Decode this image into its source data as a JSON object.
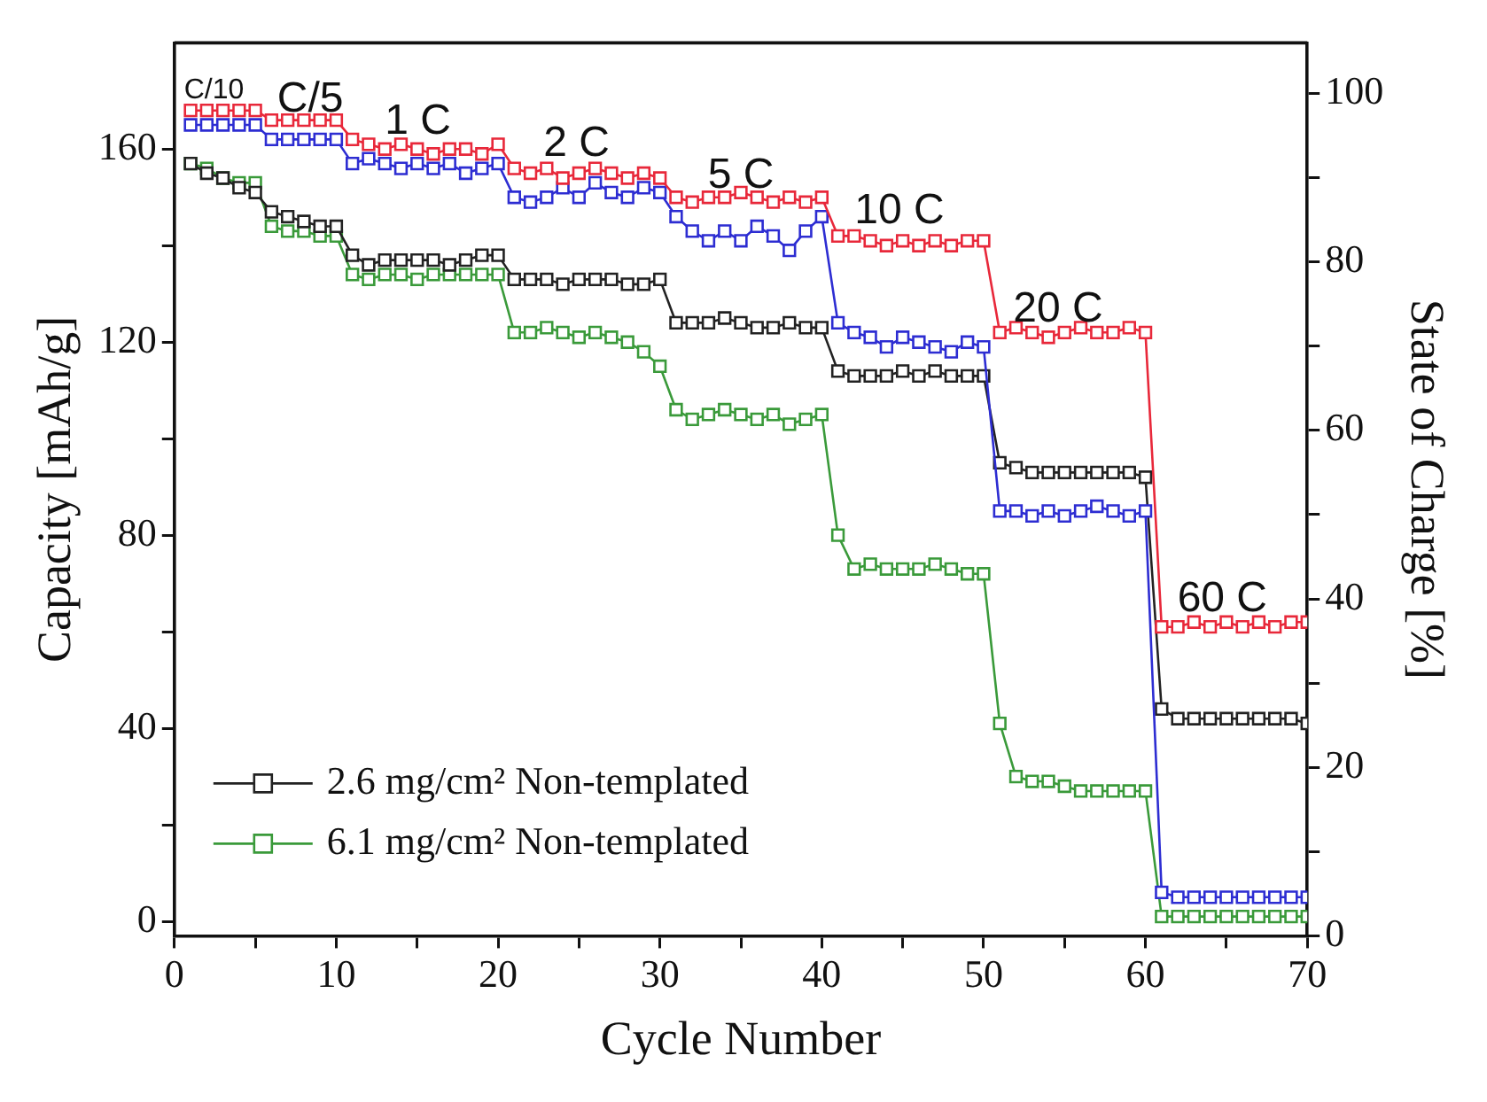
{
  "chart_data": {
    "type": "line",
    "xlabel": "Cycle Number",
    "ylabel": "Capacity [mAh/g]",
    "y2label": "State of Charge [%]",
    "xlim": [
      0,
      70
    ],
    "xticks": [
      0,
      {
        "value": 5,
        "label": null
      },
      10,
      {
        "value": 15,
        "label": null
      },
      20,
      {
        "value": 25,
        "label": null
      },
      30,
      {
        "value": 35,
        "label": null
      },
      40,
      {
        "value": 45,
        "label": null
      },
      50,
      {
        "value": 55,
        "label": null
      },
      60,
      {
        "value": 65,
        "label": null
      },
      70
    ],
    "ylim": [
      -3,
      182
    ],
    "yticks": [
      0,
      {
        "value": 20,
        "label": null
      },
      40,
      {
        "value": 60,
        "label": null
      },
      80,
      {
        "value": 100,
        "label": null
      },
      120,
      {
        "value": 140,
        "label": null
      },
      160
    ],
    "y2lim": [
      0,
      106
    ],
    "y2ticks": [
      0,
      {
        "value": 10,
        "label": null
      },
      20,
      {
        "value": 30,
        "label": null
      },
      40,
      {
        "value": 50,
        "label": null
      },
      60,
      {
        "value": 70,
        "label": null
      },
      80,
      {
        "value": 90,
        "label": null
      },
      100
    ],
    "x": [
      1,
      2,
      3,
      4,
      5,
      6,
      7,
      8,
      9,
      10,
      11,
      12,
      13,
      14,
      15,
      16,
      17,
      18,
      19,
      20,
      21,
      22,
      23,
      24,
      25,
      26,
      27,
      28,
      29,
      30,
      31,
      32,
      33,
      34,
      35,
      36,
      37,
      38,
      39,
      40,
      41,
      42,
      43,
      44,
      45,
      46,
      47,
      48,
      49,
      50,
      51,
      52,
      53,
      54,
      55,
      56,
      57,
      58,
      59,
      60,
      61,
      62,
      63,
      64,
      65,
      66,
      67,
      68,
      69,
      70
    ],
    "marker": "square",
    "line_style": "solid",
    "grid": false,
    "legend": "bottom left",
    "series": [
      {
        "color": "#e8283a",
        "values": [
          168,
          168,
          168,
          168,
          168,
          166,
          166,
          166,
          166,
          166,
          162,
          161,
          160,
          161,
          160,
          159,
          160,
          160,
          159,
          161,
          156,
          155,
          156,
          154,
          155,
          156,
          155,
          154,
          155,
          154,
          150,
          149,
          150,
          150,
          151,
          150,
          149,
          150,
          149,
          150,
          142,
          142,
          141,
          140,
          141,
          140,
          141,
          140,
          141,
          141,
          122,
          123,
          122,
          121,
          122,
          123,
          122,
          122,
          123,
          122,
          61,
          61,
          62,
          61,
          62,
          61,
          62,
          61,
          62,
          62
        ]
      },
      {
        "color": "#2d2dd2",
        "values": [
          165,
          165,
          165,
          165,
          165,
          162,
          162,
          162,
          162,
          162,
          157,
          158,
          157,
          156,
          157,
          156,
          157,
          155,
          156,
          157,
          150,
          149,
          150,
          152,
          150,
          153,
          151,
          150,
          152,
          151,
          146,
          143,
          141,
          143,
          141,
          144,
          142,
          139,
          143,
          146,
          124,
          122,
          121,
          119,
          121,
          120,
          119,
          118,
          120,
          119,
          85,
          85,
          84,
          85,
          84,
          85,
          86,
          85,
          84,
          85,
          6,
          5,
          5,
          5,
          5,
          5,
          5,
          5,
          5,
          5
        ]
      },
      {
        "name": "2.6 mg/cm² Non-templated",
        "color": "#222222",
        "values": [
          157,
          155,
          154,
          152,
          151,
          147,
          146,
          145,
          144,
          144,
          138,
          136,
          137,
          137,
          137,
          137,
          136,
          137,
          138,
          138,
          133,
          133,
          133,
          132,
          133,
          133,
          133,
          132,
          132,
          133,
          124,
          124,
          124,
          125,
          124,
          123,
          123,
          124,
          123,
          123,
          114,
          113,
          113,
          113,
          114,
          113,
          114,
          113,
          113,
          113,
          95,
          94,
          93,
          93,
          93,
          93,
          93,
          93,
          93,
          92,
          44,
          42,
          42,
          42,
          42,
          42,
          42,
          42,
          42,
          41
        ]
      },
      {
        "name": "6.1 mg/cm² Non-templated",
        "color": "#3a9a3a",
        "values": [
          157,
          156,
          154,
          153,
          153,
          144,
          143,
          143,
          142,
          142,
          134,
          133,
          134,
          134,
          133,
          134,
          134,
          134,
          134,
          134,
          122,
          122,
          123,
          122,
          121,
          122,
          121,
          120,
          118,
          115,
          106,
          104,
          105,
          106,
          105,
          104,
          105,
          103,
          104,
          105,
          80,
          73,
          74,
          73,
          73,
          73,
          74,
          73,
          72,
          72,
          41,
          30,
          29,
          29,
          28,
          27,
          27,
          27,
          27,
          27,
          1,
          1,
          1,
          1,
          1,
          1,
          1,
          1,
          1,
          1
        ]
      }
    ],
    "annotations": [
      "C/10",
      "C/5",
      "1 C",
      "2 C",
      "5 C",
      "10 C",
      "20 C",
      "60 C"
    ]
  }
}
